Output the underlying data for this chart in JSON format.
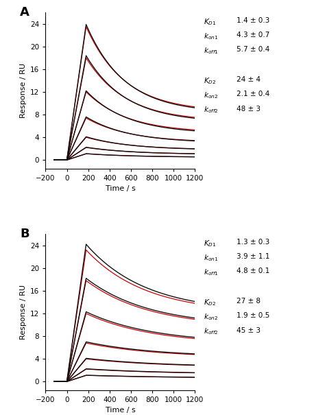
{
  "panel_A_annotation": {
    "KD1": "1.4 ± 0.3",
    "kon1": "4.3 ± 0.7",
    "koff1": "5.7 ± 0.4",
    "KD2": "24 ± 4",
    "kon2": "2.1 ± 0.4",
    "koff2": "48 ± 3"
  },
  "panel_B_annotation": {
    "KD1": "1.3 ± 0.3",
    "kon1": "3.9 ± 1.1",
    "koff1": "4.8 ± 0.1",
    "KD2": "27 ± 8",
    "kon2": "1.9 ± 0.5",
    "koff2": "45 ± 3"
  },
  "xlim": [
    -200,
    1200
  ],
  "ylim": [
    -1.5,
    26
  ],
  "xticks": [
    -200,
    0,
    200,
    400,
    600,
    800,
    1000,
    1200
  ],
  "yticks": [
    0,
    4,
    8,
    12,
    16,
    20,
    24
  ],
  "xlabel": "Time / s",
  "ylabel": "Response / RU",
  "panel_labels": [
    "A",
    "B"
  ],
  "background_color": "#ffffff",
  "red_color": "#cc0000",
  "black_color": "#111111",
  "n_curves": 7,
  "inject_start": 0,
  "inject_end": 180,
  "dissoc_end": 1200,
  "peaks_A": [
    23.5,
    18.0,
    12.0,
    7.4,
    4.0,
    2.2,
    1.1
  ],
  "ends_A": [
    8.5,
    6.8,
    4.8,
    3.1,
    1.8,
    1.0,
    0.5
  ],
  "black_peaks_A": [
    23.9,
    18.4,
    12.2,
    7.6,
    4.1,
    2.25,
    1.12
  ],
  "black_ends_A": [
    8.3,
    6.6,
    4.6,
    3.0,
    1.75,
    0.98,
    0.48
  ],
  "peaks_B": [
    23.2,
    17.8,
    12.0,
    6.8,
    4.0,
    2.2,
    1.1
  ],
  "ends_B": [
    12.0,
    9.5,
    6.5,
    4.2,
    2.5,
    1.3,
    0.6
  ],
  "black_peaks_B": [
    24.2,
    18.2,
    12.3,
    7.0,
    4.1,
    2.25,
    1.12
  ],
  "black_ends_B": [
    12.2,
    9.7,
    6.7,
    4.3,
    2.55,
    1.32,
    0.62
  ],
  "baseline_start": -100,
  "koff_A": [
    0.0028,
    0.0027,
    0.0026,
    0.0025,
    0.0024,
    0.0023,
    0.0022
  ],
  "koff_B": [
    0.0018,
    0.0017,
    0.0016,
    0.0015,
    0.0014,
    0.0013,
    0.0012
  ]
}
